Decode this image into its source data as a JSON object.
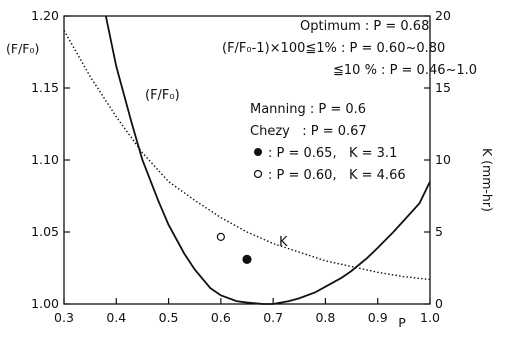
{
  "chart_data": {
    "type": "line",
    "xlabel": "P",
    "ylabel_left": "(F/F₀)",
    "ylabel_right": "K (mm-hr)",
    "xlim": [
      0.3,
      1.0
    ],
    "ylim_left": [
      1.0,
      1.2
    ],
    "ylim_right": [
      0,
      20
    ],
    "x_ticks": [
      "0.3",
      "0.4",
      "0.5",
      "0.6",
      "0.7",
      "0.8",
      "0.9",
      "1.0"
    ],
    "y_ticks_left": [
      "1.00",
      "1.05",
      "1.10",
      "1.15",
      "1.20"
    ],
    "y_ticks_right": [
      "0",
      "5",
      "10",
      "15",
      "20"
    ],
    "grid": false,
    "series": [
      {
        "name": "(F/F₀)",
        "axis": "left",
        "style": "solid",
        "x": [
          0.38,
          0.4,
          0.43,
          0.45,
          0.48,
          0.5,
          0.53,
          0.55,
          0.58,
          0.6,
          0.63,
          0.65,
          0.68,
          0.7,
          0.73,
          0.75,
          0.78,
          0.8,
          0.83,
          0.85,
          0.88,
          0.9,
          0.93,
          0.95,
          0.98,
          1.0
        ],
        "values": [
          1.2,
          1.165,
          1.125,
          1.1,
          1.072,
          1.055,
          1.035,
          1.024,
          1.011,
          1.006,
          1.002,
          1.001,
          1.0,
          1.0,
          1.002,
          1.004,
          1.008,
          1.012,
          1.018,
          1.023,
          1.032,
          1.039,
          1.05,
          1.058,
          1.07,
          1.085
        ]
      },
      {
        "name": "K",
        "axis": "right",
        "style": "dotted",
        "x": [
          0.3,
          0.35,
          0.4,
          0.45,
          0.5,
          0.55,
          0.6,
          0.65,
          0.7,
          0.75,
          0.8,
          0.85,
          0.9,
          0.95,
          1.0
        ],
        "values": [
          19.0,
          15.8,
          13.0,
          10.5,
          8.5,
          7.2,
          6.0,
          5.0,
          4.2,
          3.6,
          3.0,
          2.6,
          2.2,
          1.9,
          1.7
        ]
      }
    ],
    "points": [
      {
        "marker": "filled",
        "x": 0.65,
        "k": 3.1
      },
      {
        "marker": "open",
        "x": 0.6,
        "k": 4.66
      }
    ],
    "curve_labels": {
      "ff0": "(F/F₀)",
      "k": "K"
    },
    "annotations": [
      "Optimum : P = 0.68",
      "(F/F₀-1)×100≦1% : P = 0.60~0.80",
      "≦10 % : P = 0.46~1.0",
      "Manning : P = 0.6",
      "Chezy   : P = 0.67",
      ": P = 0.65,   K = 3.1",
      ": P = 0.60,   K = 4.66"
    ]
  }
}
